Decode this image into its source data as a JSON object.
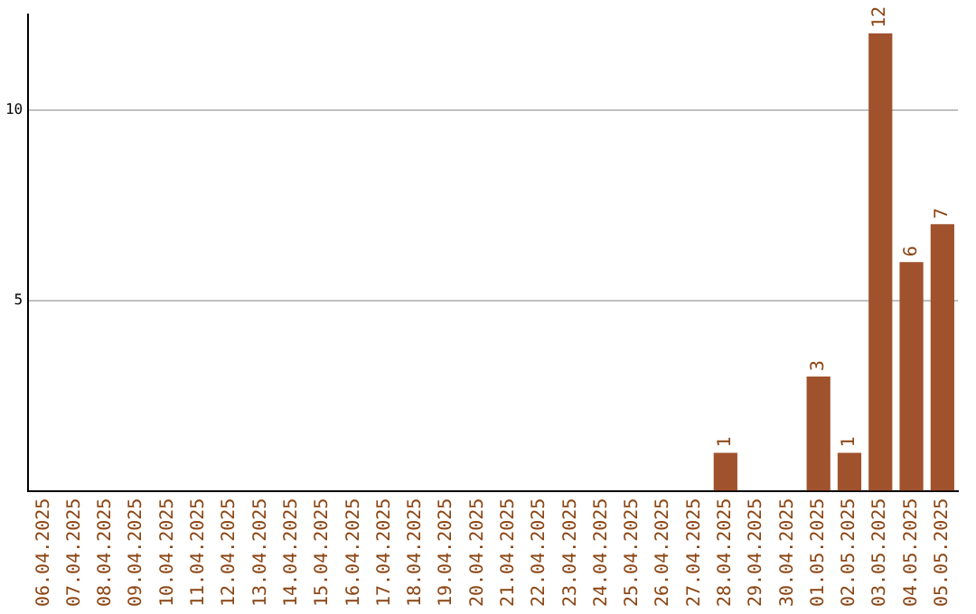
{
  "chart_data": {
    "type": "bar",
    "categories": [
      "06.04.2025",
      "07.04.2025",
      "08.04.2025",
      "09.04.2025",
      "10.04.2025",
      "11.04.2025",
      "12.04.2025",
      "13.04.2025",
      "14.04.2025",
      "15.04.2025",
      "16.04.2025",
      "17.04.2025",
      "18.04.2025",
      "19.04.2025",
      "20.04.2025",
      "21.04.2025",
      "22.04.2025",
      "23.04.2025",
      "24.04.2025",
      "25.04.2025",
      "26.04.2025",
      "27.04.2025",
      "28.04.2025",
      "29.04.2025",
      "30.04.2025",
      "01.05.2025",
      "02.05.2025",
      "03.05.2025",
      "04.05.2025",
      "05.05.2025"
    ],
    "values": [
      0,
      0,
      0,
      0,
      0,
      0,
      0,
      0,
      0,
      0,
      0,
      0,
      0,
      0,
      0,
      0,
      0,
      0,
      0,
      0,
      0,
      0,
      1,
      0,
      0,
      3,
      1,
      12,
      6,
      7
    ],
    "value_labels": [
      null,
      null,
      null,
      null,
      null,
      null,
      null,
      null,
      null,
      null,
      null,
      null,
      null,
      null,
      null,
      null,
      null,
      null,
      null,
      null,
      null,
      null,
      "1",
      null,
      null,
      "3",
      "1",
      "12",
      "6",
      "7"
    ],
    "color": "#a0522d",
    "ylim": [
      0,
      12.5
    ],
    "yticks": [
      5,
      10
    ],
    "grid": "y",
    "legend": false
  }
}
